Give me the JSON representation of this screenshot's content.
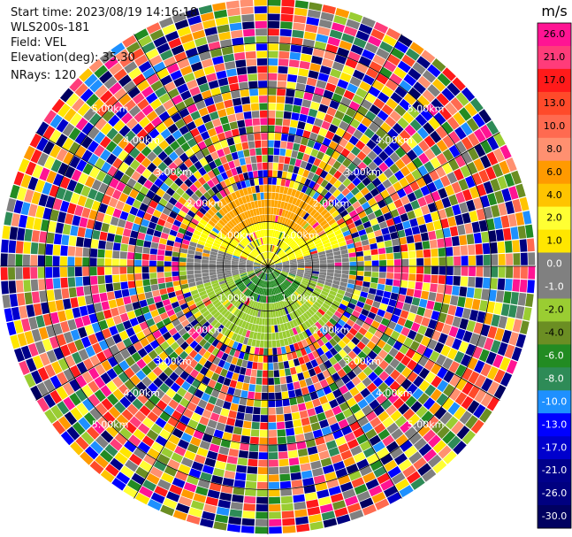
{
  "meta": {
    "start_time": "Start time: 2023/08/19 14:16:18",
    "instrument": "WLS200s-181",
    "field": "Field: VEL",
    "elevation": "Elevation(deg): 35.30",
    "nrays": "NRays: 120"
  },
  "chart_data": {
    "type": "heatmap",
    "projection": "polar-ppi",
    "title": "",
    "n_rays": 120,
    "n_range_gates_visible": 36,
    "range_max_km": 6.0,
    "range_ring_labels": [
      "1.00km",
      "2.00km",
      "3.00km",
      "4.00km",
      "5.00km"
    ],
    "range_rings_km": [
      1,
      2,
      3,
      4,
      5
    ],
    "spoke_angles_deg": [
      0,
      30,
      60,
      90,
      120,
      150,
      180,
      210,
      240,
      270,
      300,
      330
    ],
    "colorbar": {
      "unit": "m/s",
      "tick_labels": [
        "26.0",
        "21.0",
        "17.0",
        "13.0",
        "10.0",
        "8.0",
        "6.0",
        "4.0",
        "2.0",
        "1.0",
        "0.0",
        "-1.0",
        "-2.0",
        "-4.0",
        "-6.0",
        "-8.0",
        "-10.0",
        "-13.0",
        "-17.0",
        "-21.0",
        "-26.0",
        "-30.0"
      ],
      "bin_colors": [
        "#ff1493",
        "#ff3c7a",
        "#ff1a1a",
        "#ff4a2a",
        "#ff6a50",
        "#ff9070",
        "#ff9a00",
        "#ffc400",
        "#ffff33",
        "#ffe600",
        "#808080",
        "#808080",
        "#9acd32",
        "#6b8e23",
        "#228b22",
        "#2e8b57",
        "#1e90ff",
        "#0000ff",
        "#0000cd",
        "#00008b",
        "#000080",
        "#000060"
      ]
    },
    "field_pattern": {
      "near_range_km": 1.8,
      "north_half_color": "#ffff00",
      "north_far_color": "#ffa500",
      "south_half_color": "#228b22",
      "south_edge_color": "#9acd32",
      "zero_band_color": "#808080",
      "beyond_range": "noise"
    }
  }
}
